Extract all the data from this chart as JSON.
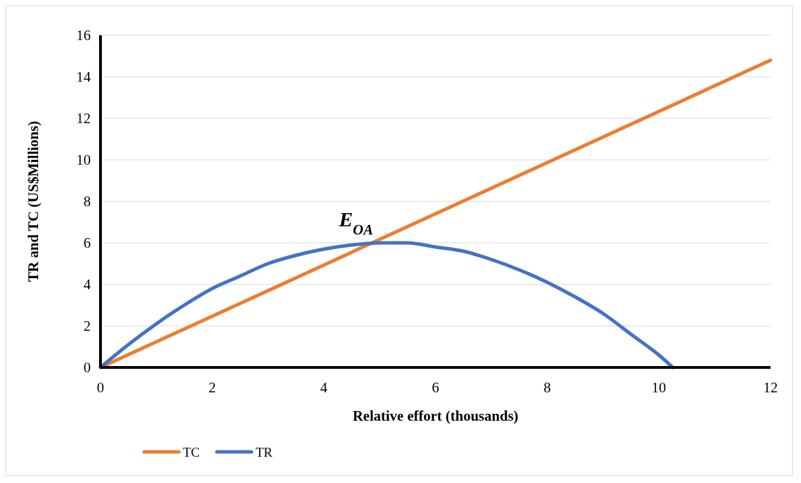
{
  "chart_data": {
    "type": "line",
    "xlabel": "Relative effort (thousands)",
    "ylabel": "TR and TC (US$Millions)",
    "xlim": [
      0,
      12
    ],
    "xticks": [
      0,
      2,
      4,
      6,
      8,
      10,
      12
    ],
    "ylim": [
      0,
      16
    ],
    "yticks": [
      0,
      2,
      4,
      6,
      8,
      10,
      12,
      14,
      16
    ],
    "grid": "y",
    "legend": "bottom",
    "line_style": "solid",
    "marker": "none",
    "annotations": [
      {
        "text": "E$_{OA}$",
        "x": 4.85,
        "y": 6
      }
    ],
    "series": [
      {
        "name": "TC",
        "color": "#ed7d31",
        "x": [
          0,
          12
        ],
        "values": [
          0,
          14.8
        ]
      },
      {
        "name": "TR",
        "color": "#4472c4",
        "x": [
          0,
          0.5,
          1,
          1.5,
          2,
          2.5,
          3,
          3.5,
          4,
          4.5,
          5,
          5.5,
          6,
          6.5,
          7,
          7.5,
          8,
          8.5,
          9,
          9.5,
          10,
          10.25
        ],
        "values": [
          0,
          1.1,
          2.1,
          3.0,
          3.8,
          4.4,
          5.0,
          5.4,
          5.7,
          5.9,
          6.0,
          6.0,
          5.8,
          5.6,
          5.2,
          4.7,
          4.1,
          3.4,
          2.6,
          1.6,
          0.6,
          0
        ]
      }
    ]
  }
}
